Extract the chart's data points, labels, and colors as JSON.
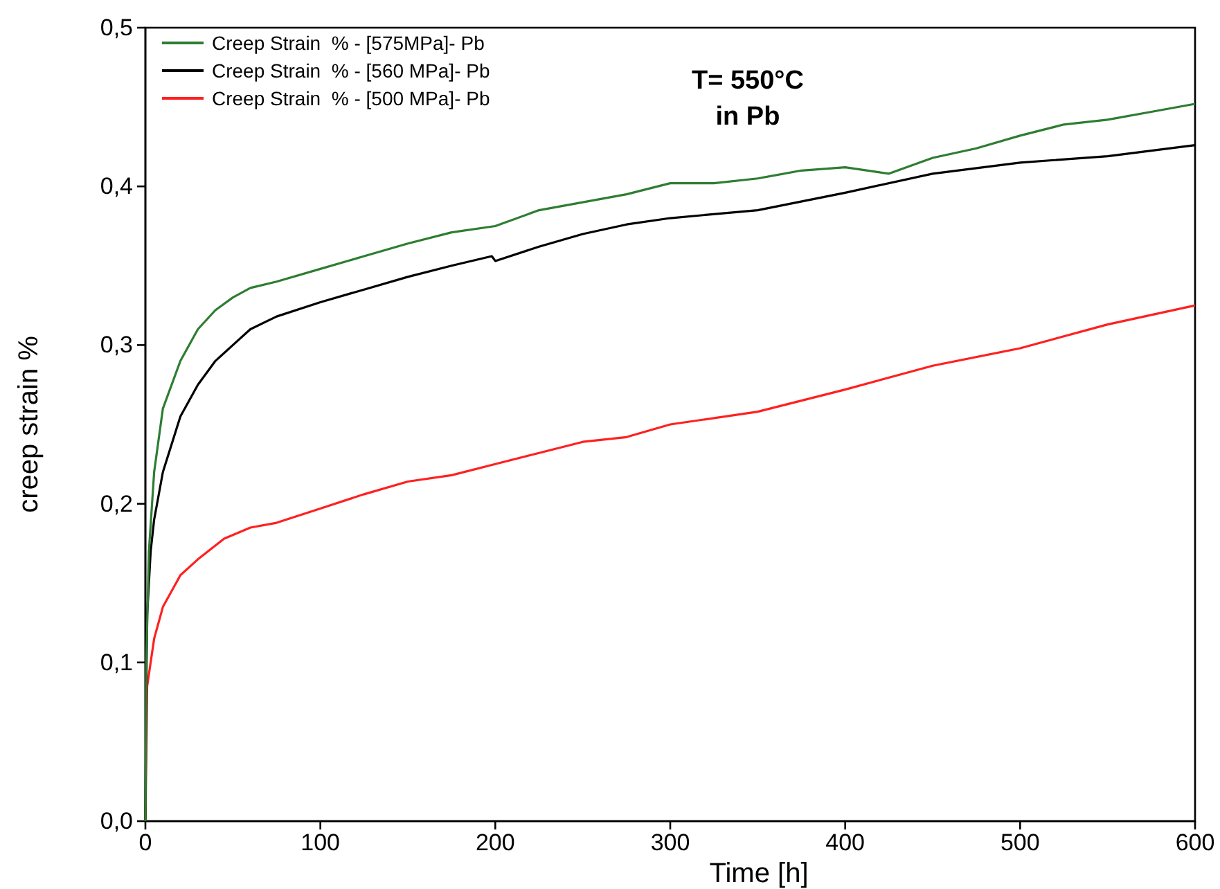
{
  "chart_data": {
    "type": "line",
    "xlabel": "Time [h]",
    "ylabel": "creep strain %",
    "annotations": [
      "T= 550°C",
      "in Pb"
    ],
    "xlim": [
      0,
      600
    ],
    "xticks": [
      0,
      100,
      200,
      300,
      400,
      500,
      600
    ],
    "ylim": [
      0,
      0.5
    ],
    "yticks": [
      {
        "value": 0,
        "label": "0,0"
      },
      {
        "value": 0.1,
        "label": "0,1"
      },
      {
        "value": 0.2,
        "label": "0,2"
      },
      {
        "value": 0.3,
        "label": "0,3"
      },
      {
        "value": 0.4,
        "label": "0,4"
      },
      {
        "value": 0.5,
        "label": "0,5"
      }
    ],
    "legend": "top left",
    "grid": false,
    "marker": "none",
    "line_style": "solid",
    "series": [
      {
        "name": "Creep Strain  % - [575MPa]- Pb",
        "color": "#2e7d32",
        "x": [
          0,
          0.5,
          2,
          5,
          10,
          20,
          30,
          40,
          50,
          60,
          75,
          100,
          125,
          150,
          175,
          200,
          225,
          250,
          275,
          300,
          325,
          350,
          375,
          400,
          425,
          450,
          475,
          500,
          525,
          550,
          575,
          600
        ],
        "values": [
          0,
          0.1,
          0.17,
          0.22,
          0.26,
          0.29,
          0.31,
          0.322,
          0.33,
          0.336,
          0.34,
          0.348,
          0.356,
          0.364,
          0.371,
          0.375,
          0.385,
          0.39,
          0.395,
          0.402,
          0.402,
          0.405,
          0.41,
          0.412,
          0.408,
          0.418,
          0.424,
          0.432,
          0.439,
          0.442,
          0.447,
          0.452
        ]
      },
      {
        "name": "Creep Strain  % - [560 MPa]- Pb",
        "color": "#000000",
        "x": [
          0,
          0.5,
          1,
          3,
          5,
          10,
          20,
          30,
          40,
          50,
          60,
          75,
          100,
          125,
          150,
          175,
          198,
          200,
          225,
          250,
          275,
          300,
          350,
          400,
          450,
          500,
          550,
          600
        ],
        "values": [
          0,
          0.08,
          0.13,
          0.17,
          0.19,
          0.22,
          0.255,
          0.275,
          0.29,
          0.3,
          0.31,
          0.318,
          0.327,
          0.335,
          0.343,
          0.35,
          0.356,
          0.353,
          0.362,
          0.37,
          0.376,
          0.38,
          0.385,
          0.396,
          0.408,
          0.415,
          0.419,
          0.426
        ]
      },
      {
        "name": "Creep Strain  % - [500 MPa]- Pb",
        "color": "#ff2020",
        "x": [
          0,
          1,
          3,
          5,
          10,
          20,
          30,
          45,
          60,
          75,
          100,
          125,
          150,
          175,
          200,
          225,
          250,
          275,
          300,
          350,
          400,
          450,
          500,
          550,
          600
        ],
        "values": [
          0,
          0.085,
          0.1,
          0.115,
          0.135,
          0.155,
          0.165,
          0.178,
          0.185,
          0.188,
          0.197,
          0.206,
          0.214,
          0.218,
          0.225,
          0.232,
          0.239,
          0.242,
          0.25,
          0.258,
          0.272,
          0.287,
          0.298,
          0.313,
          0.325
        ]
      }
    ]
  }
}
